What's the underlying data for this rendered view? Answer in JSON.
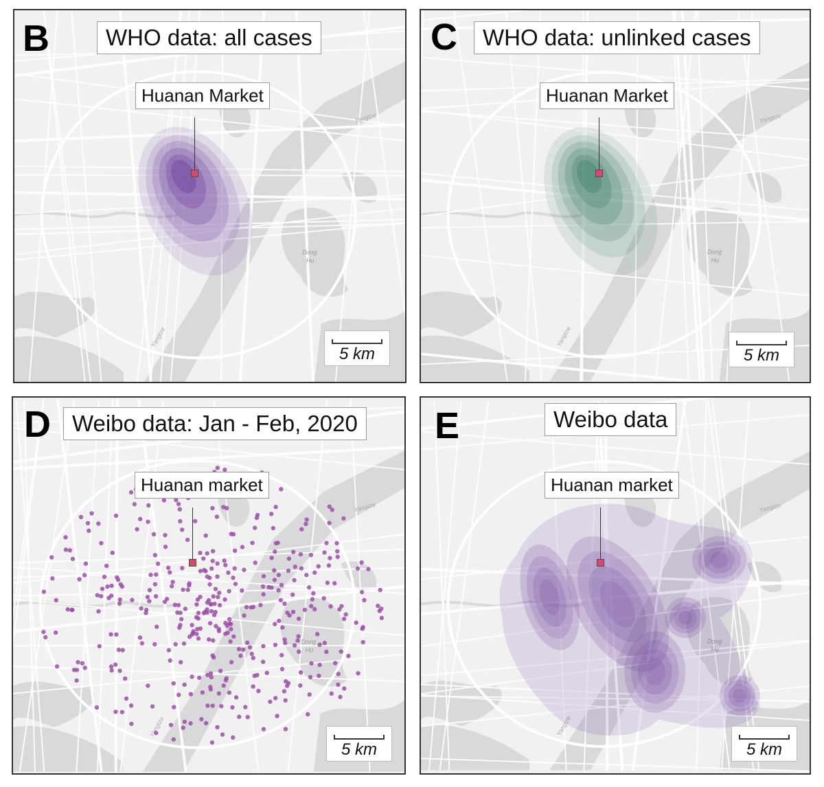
{
  "panels": [
    {
      "letter": "B",
      "title": "WHO data: all cases",
      "market_label": "Huanan Market",
      "scale": "5 km",
      "density_color": "#6a3d9a"
    },
    {
      "letter": "C",
      "title": "WHO data: unlinked cases",
      "market_label": "Huanan Market",
      "scale": "5 km",
      "density_color": "#3f7f6b"
    },
    {
      "letter": "D",
      "title": "Weibo data: Jan - Feb, 2020",
      "market_label": "Huanan market",
      "scale": "5 km",
      "point_color": "#9b4fa6"
    },
    {
      "letter": "E",
      "title": "Weibo data",
      "market_label": "Huanan market",
      "scale": "5 km",
      "density_color": "#6a3d9a"
    }
  ],
  "map_labels": {
    "river": "Yangtze",
    "lake": "Dong Hu"
  },
  "colors": {
    "market": "#d6457f",
    "water": "#d9d9db",
    "land": "#f1f1f2",
    "roads": "#ffffff"
  }
}
